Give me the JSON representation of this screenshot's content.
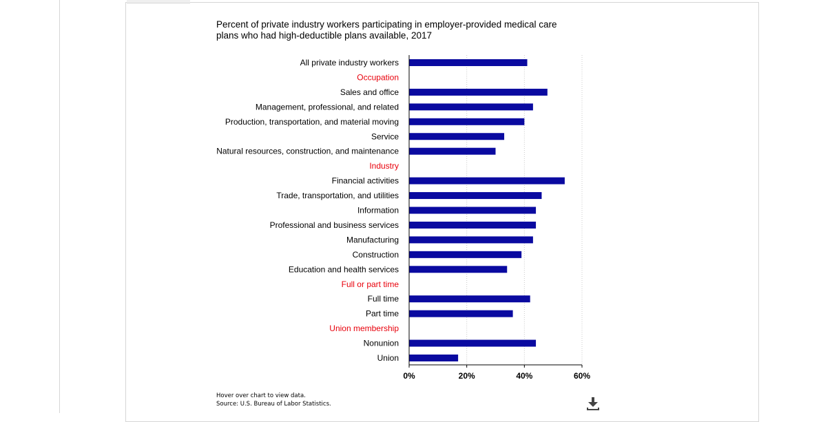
{
  "chart_data": {
    "type": "bar",
    "orientation": "horizontal",
    "title_lines": [
      "Percent of private industry workers participating in employer-provided medical care",
      "plans who had high-deductible plans available, 2017"
    ],
    "rows": [
      {
        "label": "All private industry workers",
        "value": 41,
        "is_header": false
      },
      {
        "label": "Occupation",
        "value": null,
        "is_header": true
      },
      {
        "label": "Sales and office",
        "value": 48,
        "is_header": false
      },
      {
        "label": "Management, professional, and related",
        "value": 43,
        "is_header": false
      },
      {
        "label": "Production, transportation, and material moving",
        "value": 40,
        "is_header": false
      },
      {
        "label": "Service",
        "value": 33,
        "is_header": false
      },
      {
        "label": "Natural resources, construction, and maintenance",
        "value": 30,
        "is_header": false
      },
      {
        "label": "Industry",
        "value": null,
        "is_header": true
      },
      {
        "label": "Financial activities",
        "value": 54,
        "is_header": false
      },
      {
        "label": "Trade, transportation, and utilities",
        "value": 46,
        "is_header": false
      },
      {
        "label": "Information",
        "value": 44,
        "is_header": false
      },
      {
        "label": "Professional and business services",
        "value": 44,
        "is_header": false
      },
      {
        "label": "Manufacturing",
        "value": 43,
        "is_header": false
      },
      {
        "label": "Construction",
        "value": 39,
        "is_header": false
      },
      {
        "label": "Education and health services",
        "value": 34,
        "is_header": false
      },
      {
        "label": "Full or part time",
        "value": null,
        "is_header": true
      },
      {
        "label": "Full time",
        "value": 42,
        "is_header": false
      },
      {
        "label": "Part time",
        "value": 36,
        "is_header": false
      },
      {
        "label": "Union membership",
        "value": null,
        "is_header": true
      },
      {
        "label": "Nonunion",
        "value": 44,
        "is_header": false
      },
      {
        "label": "Union",
        "value": 17,
        "is_header": false
      }
    ],
    "x_ticks": [
      0,
      20,
      40,
      60
    ],
    "x_tick_labels": [
      "0%",
      "20%",
      "40%",
      "60%"
    ],
    "xlim": [
      0,
      60
    ],
    "grid": "vertical dotted",
    "bar_color": "#0a0aa0",
    "header_color": "#e8000b"
  },
  "notes": {
    "hover": "Hover over chart to view data.",
    "source": "Source: U.S. Bureau of Labor Statistics."
  },
  "icons": {
    "download": "download-icon"
  }
}
